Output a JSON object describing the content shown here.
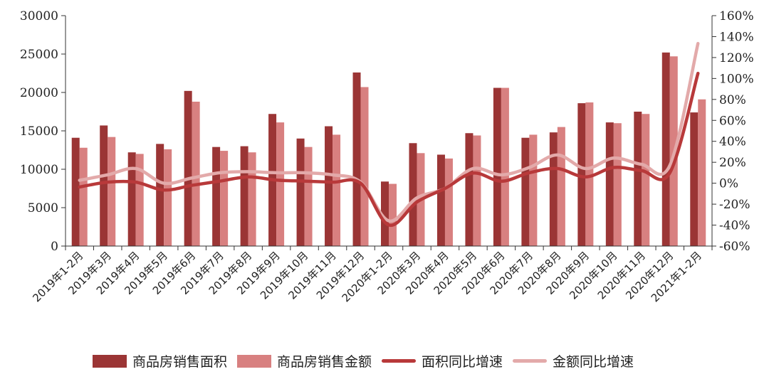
{
  "chart_data": {
    "type": "bar",
    "categories": [
      "2019年1-2月",
      "2019年3月",
      "2019年4月",
      "2019年5月",
      "2019年6月",
      "2019年7月",
      "2019年8月",
      "2019年9月",
      "2019年10月",
      "2019年11月",
      "2019年12月",
      "2020年1-2月",
      "2020年3月",
      "2020年4月",
      "2020年5月",
      "2020年6月",
      "2020年7月",
      "2020年8月",
      "2020年9月",
      "2020年10月",
      "2020年11月",
      "2020年12月",
      "2021年1-2月"
    ],
    "left_axis": {
      "ylim": [
        0,
        30000
      ],
      "ticks": [
        "0",
        "5000",
        "10000",
        "15000",
        "20000",
        "25000",
        "30000"
      ]
    },
    "right_axis": {
      "ylim": [
        -60,
        160
      ],
      "ticks": [
        "-60%",
        "-40%",
        "-20%",
        "0%",
        "20%",
        "40%",
        "60%",
        "80%",
        "100%",
        "120%",
        "140%",
        "160%"
      ]
    },
    "series": [
      {
        "name": "商品房销售面积",
        "type": "bar",
        "axis": "left",
        "color": "#9b3535",
        "values": [
          14100,
          15700,
          12200,
          13300,
          20200,
          12900,
          13000,
          17200,
          14000,
          15600,
          22600,
          8400,
          13400,
          11900,
          14700,
          20600,
          14100,
          14800,
          18600,
          16100,
          17500,
          25200,
          17400
        ]
      },
      {
        "name": "商品房销售金额",
        "type": "bar",
        "axis": "left",
        "color": "#d88080",
        "values": [
          12800,
          14200,
          12000,
          12600,
          18800,
          12400,
          12200,
          16100,
          12900,
          14500,
          20700,
          8100,
          12100,
          11400,
          14400,
          20600,
          14500,
          15500,
          18700,
          16000,
          17200,
          24700,
          19100
        ]
      },
      {
        "name": "面积同比增速",
        "type": "line",
        "axis": "right",
        "color": "#b8393a",
        "values": [
          -3.6,
          1.0,
          1.0,
          -6.5,
          -2.0,
          2.0,
          6.0,
          3.0,
          2.0,
          1.0,
          0.0,
          -39.9,
          -18.0,
          -5.0,
          9.7,
          1.9,
          10.0,
          14.0,
          6.0,
          15.0,
          12.0,
          10.0,
          104.9
        ]
      },
      {
        "name": "金额同比增速",
        "type": "line",
        "axis": "right",
        "color": "#e3aaaa",
        "values": [
          2.8,
          8.0,
          14.0,
          0.0,
          5.0,
          10.0,
          11.0,
          10.0,
          10.0,
          8.0,
          1.0,
          -35.9,
          -14.0,
          -5.0,
          14.0,
          8.0,
          15.0,
          27.0,
          14.0,
          24.0,
          18.0,
          17.0,
          133.4
        ]
      }
    ],
    "legend_position": "bottom"
  },
  "legend": {
    "area_label": "商品房销售面积",
    "amount_label": "商品房销售金额",
    "area_growth_label": "面积同比增速",
    "amount_growth_label": "金额同比增速"
  }
}
